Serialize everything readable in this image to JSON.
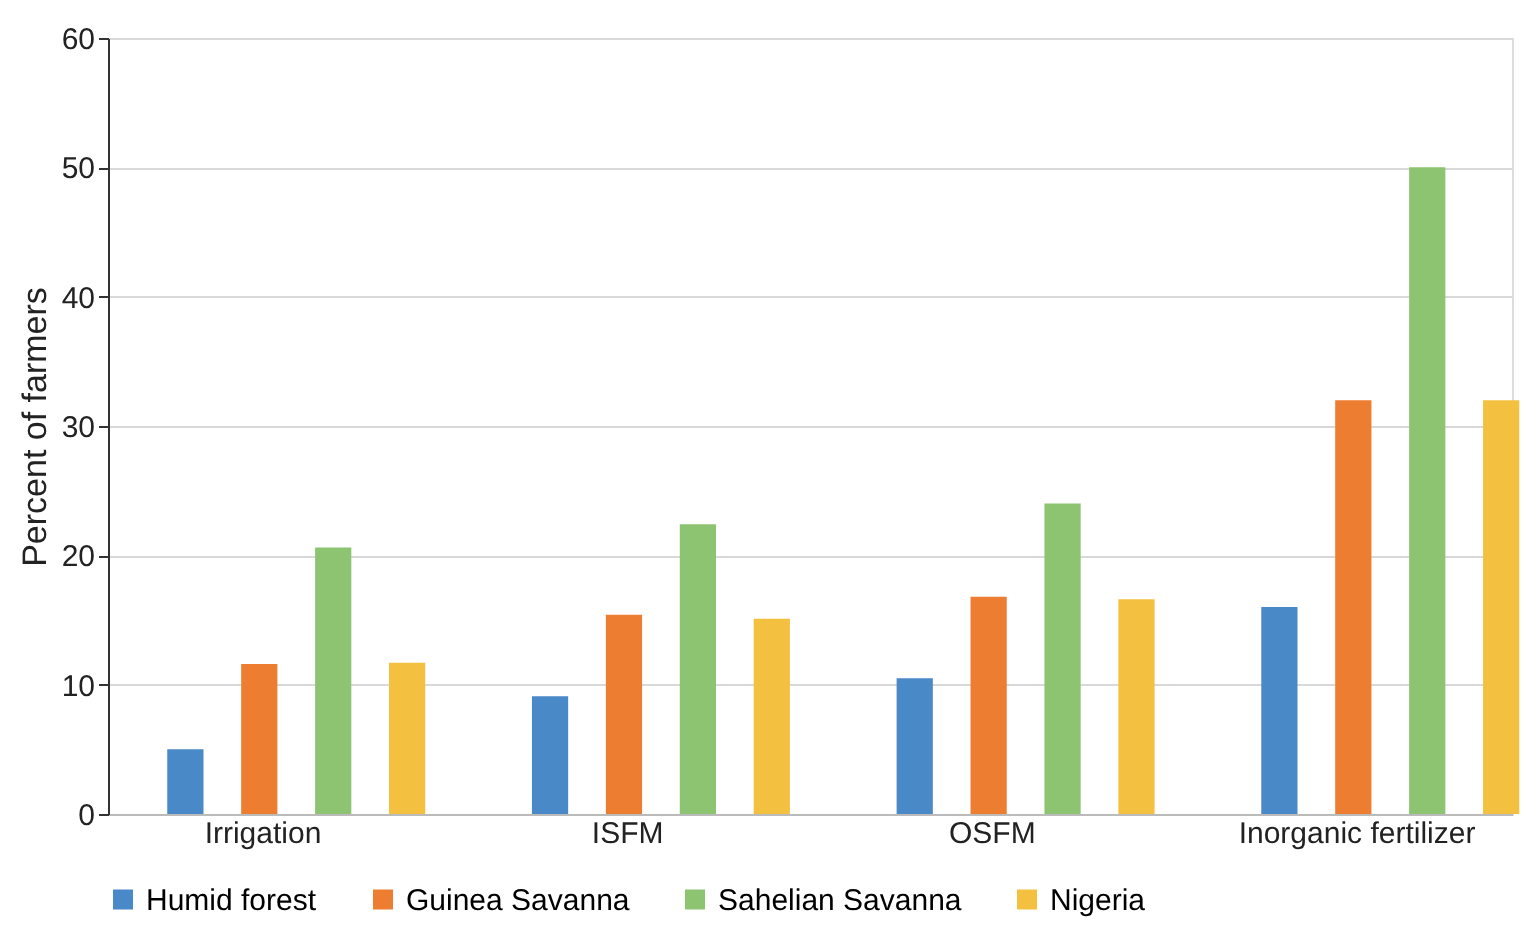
{
  "chart_data": {
    "type": "bar",
    "ylabel": "Percent of farmers",
    "categories": [
      "Irrigation",
      "ISFM",
      "OSFM",
      "Inorganic fertilizer"
    ],
    "series": [
      {
        "name": "Humid forest",
        "color": "#4a89c8",
        "values": [
          5.0,
          9.1,
          10.5,
          16.0
        ]
      },
      {
        "name": "Guinea Savanna",
        "color": "#ed7d31",
        "values": [
          11.6,
          15.4,
          16.8,
          32.0
        ]
      },
      {
        "name": "Sahelian Savanna",
        "color": "#8dc472",
        "values": [
          20.6,
          22.4,
          24.0,
          50.0
        ]
      },
      {
        "name": "Nigeria",
        "color": "#f4c040",
        "values": [
          11.7,
          15.1,
          16.6,
          32.0
        ]
      }
    ],
    "ylim": [
      0,
      60
    ],
    "yticks": [
      0,
      10,
      20,
      30,
      40,
      50,
      60
    ],
    "grid": "y",
    "legend": "bottom"
  }
}
